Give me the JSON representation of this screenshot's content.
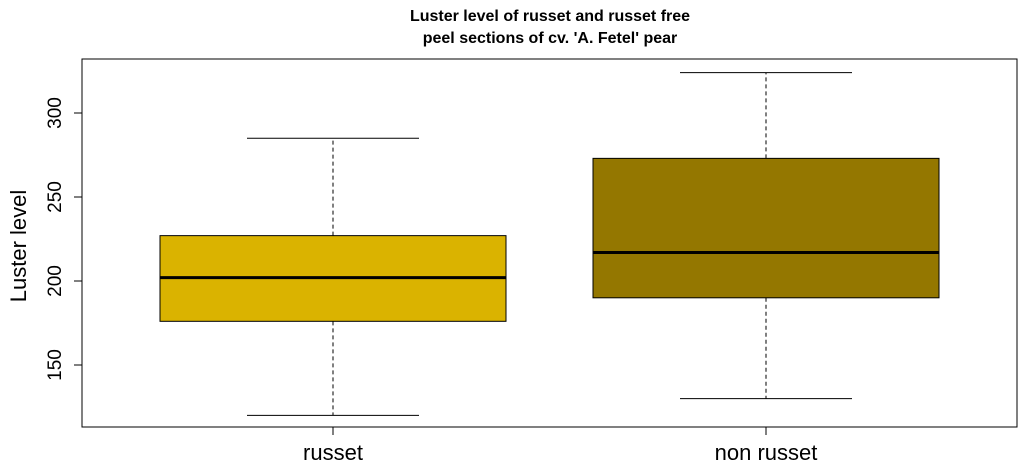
{
  "chart_data": {
    "type": "boxplot",
    "title_lines": [
      "Luster level of russet and russet free",
      "peel sections of cv. 'A. Fetel' pear"
    ],
    "ylabel": "Luster level",
    "xlabel": "",
    "ylim": [
      110,
      330
    ],
    "yticks": [
      150,
      200,
      250,
      300
    ],
    "categories": [
      "russet",
      "non russet"
    ],
    "boxes": [
      {
        "category": "russet",
        "min": 120,
        "q1": 176,
        "median": 202,
        "q3": 227,
        "max": 285,
        "color": "#DAB300"
      },
      {
        "category": "non russet",
        "min": 130,
        "q1": 190,
        "median": 217,
        "q3": 273,
        "max": 324,
        "color": "#947700"
      }
    ],
    "grid": false,
    "legend": "none"
  }
}
